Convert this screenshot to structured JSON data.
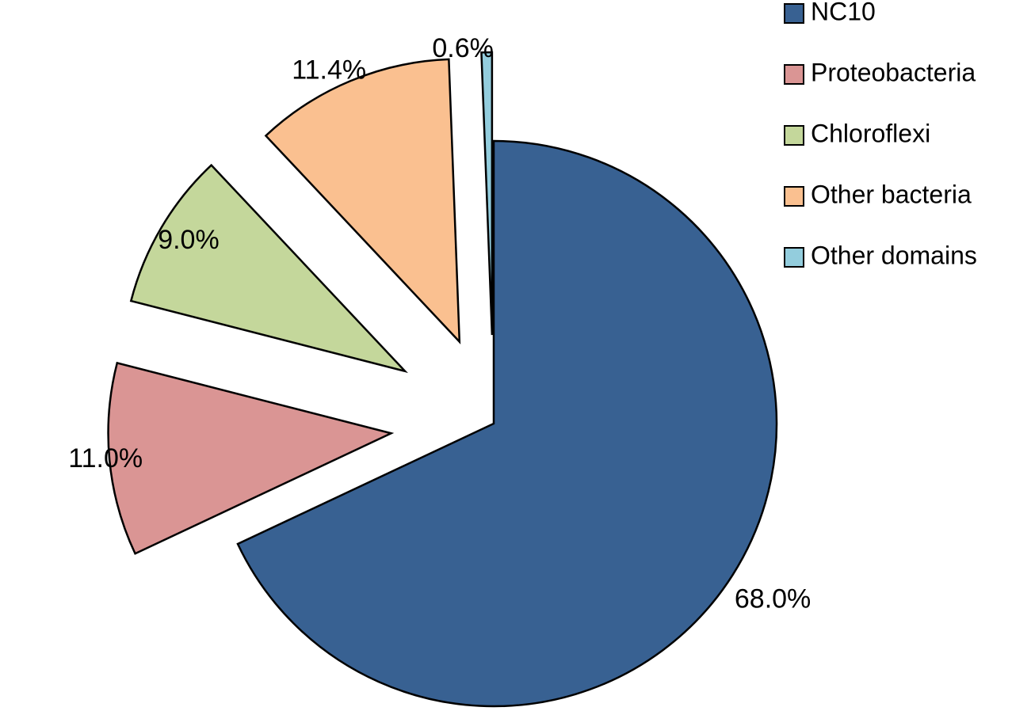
{
  "chart_data": {
    "type": "pie",
    "exploded": true,
    "legend_position": "top-right",
    "slices": [
      {
        "name": "NC10",
        "value": 68.0,
        "label": "68.0%",
        "color": "#386192"
      },
      {
        "name": "Proteobacteria",
        "value": 11.0,
        "label": "11.0%",
        "color": "#da9594"
      },
      {
        "name": "Chloroflexi",
        "value": 9.0,
        "label": "9.0%",
        "color": "#c4d79b"
      },
      {
        "name": "Other bacteria",
        "value": 11.4,
        "label": "11.4%",
        "color": "#fac090"
      },
      {
        "name": "Other domains",
        "value": 0.6,
        "label": "0.6%",
        "color": "#93cddd"
      }
    ]
  }
}
